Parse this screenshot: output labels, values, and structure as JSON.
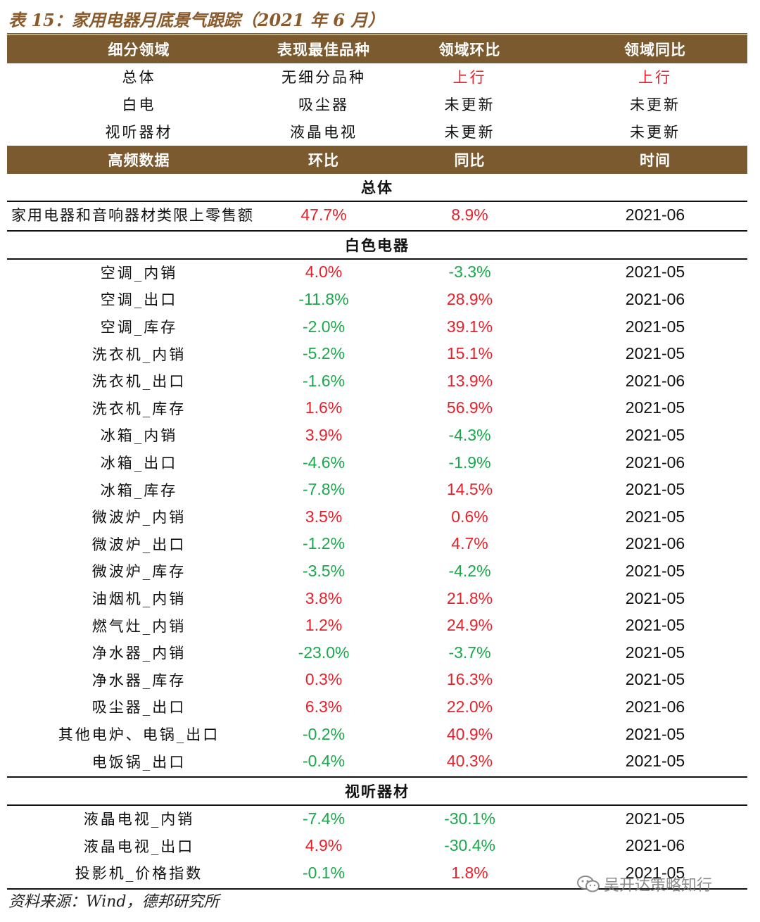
{
  "title": "表 15：家用电器月底景气跟踪（2021 年 6 月）",
  "top_header": [
    "细分领域",
    "表现最佳品种",
    "领域环比",
    "领域同比"
  ],
  "top_rows": [
    {
      "cells": [
        "总体",
        "无细分品种",
        "上行",
        "上行"
      ],
      "colors": [
        "",
        "",
        "red",
        "red"
      ]
    },
    {
      "cells": [
        "白电",
        "吸尘器",
        "未更新",
        "未更新"
      ],
      "colors": [
        "",
        "",
        "",
        ""
      ]
    },
    {
      "cells": [
        "视听器材",
        "液晶电视",
        "未更新",
        "未更新"
      ],
      "colors": [
        "",
        "",
        "",
        ""
      ]
    }
  ],
  "hf_header": [
    "高频数据",
    "环比",
    "同比",
    "时间"
  ],
  "sections": [
    {
      "name": "总体",
      "rows": [
        {
          "label": "家用电器和音响器材类限上零售额",
          "mom": "47.7%",
          "yoy": "8.9%",
          "time": "2021-06"
        }
      ]
    },
    {
      "name": "白色电器",
      "rows": [
        {
          "label": "空调_内销",
          "mom": "4.0%",
          "yoy": "-3.3%",
          "time": "2021-05"
        },
        {
          "label": "空调_出口",
          "mom": "-11.8%",
          "yoy": "28.9%",
          "time": "2021-06"
        },
        {
          "label": "空调_库存",
          "mom": "-2.0%",
          "yoy": "39.1%",
          "time": "2021-05"
        },
        {
          "label": "洗衣机_内销",
          "mom": "-5.2%",
          "yoy": "15.1%",
          "time": "2021-05"
        },
        {
          "label": "洗衣机_出口",
          "mom": "-1.6%",
          "yoy": "13.9%",
          "time": "2021-06"
        },
        {
          "label": "洗衣机_库存",
          "mom": "1.6%",
          "yoy": "56.9%",
          "time": "2021-05"
        },
        {
          "label": "冰箱_内销",
          "mom": "3.9%",
          "yoy": "-4.3%",
          "time": "2021-05"
        },
        {
          "label": "冰箱_出口",
          "mom": "-4.6%",
          "yoy": "-1.9%",
          "time": "2021-06"
        },
        {
          "label": "冰箱_库存",
          "mom": "-7.8%",
          "yoy": "14.5%",
          "time": "2021-05"
        },
        {
          "label": "微波炉_内销",
          "mom": "3.5%",
          "yoy": "0.6%",
          "time": "2021-05"
        },
        {
          "label": "微波炉_出口",
          "mom": "-1.2%",
          "yoy": "4.7%",
          "time": "2021-06"
        },
        {
          "label": "微波炉_库存",
          "mom": "-3.5%",
          "yoy": "-4.2%",
          "time": "2021-05"
        },
        {
          "label": "油烟机_内销",
          "mom": "3.8%",
          "yoy": "21.8%",
          "time": "2021-05"
        },
        {
          "label": "燃气灶_内销",
          "mom": "1.2%",
          "yoy": "24.9%",
          "time": "2021-05"
        },
        {
          "label": "净水器_内销",
          "mom": "-23.0%",
          "yoy": "-3.7%",
          "time": "2021-05"
        },
        {
          "label": "净水器_库存",
          "mom": "0.3%",
          "yoy": "16.3%",
          "time": "2021-05"
        },
        {
          "label": "吸尘器_出口",
          "mom": "6.3%",
          "yoy": "22.0%",
          "time": "2021-06"
        },
        {
          "label": "其他电炉、电锅_出口",
          "mom": "-0.2%",
          "yoy": "40.9%",
          "time": "2021-05"
        },
        {
          "label": "电饭锅_出口",
          "mom": "-0.4%",
          "yoy": "40.3%",
          "time": "2021-05"
        }
      ]
    },
    {
      "name": "视听器材",
      "rows": [
        {
          "label": "液晶电视_内销",
          "mom": "-7.4%",
          "yoy": "-30.1%",
          "time": "2021-05"
        },
        {
          "label": "液晶电视_出口",
          "mom": "4.9%",
          "yoy": "-30.4%",
          "time": "2021-06"
        },
        {
          "label": "投影机_价格指数",
          "mom": "-0.1%",
          "yoy": "1.8%",
          "time": "2021-05"
        }
      ]
    }
  ],
  "footer": "资料来源：Wind，德邦研究所",
  "watermark": "吴开达策略知行",
  "colors": {
    "header_bg": "#7b5a2f",
    "title": "#8b5a2b",
    "positive": "#e8202a",
    "negative": "#19a84a"
  }
}
